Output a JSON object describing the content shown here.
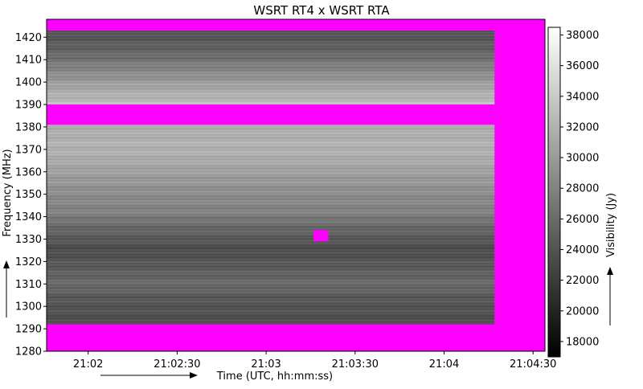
{
  "chart_data": {
    "type": "heatmap",
    "title": "WSRT RT4 x WSRT RTA",
    "xlabel": "Time (UTC, hh:mm:ss)",
    "ylabel": "Frequency (MHz)",
    "colorbar_label": "Visibility (Jy)",
    "x_tick_labels": [
      "21:02",
      "21:02:30",
      "21:03",
      "21:03:30",
      "21:04",
      "21:04:30"
    ],
    "x_tick_seconds": [
      120,
      150,
      180,
      210,
      240,
      270
    ],
    "xlim_seconds": [
      106,
      274
    ],
    "y_ticks": [
      1280,
      1290,
      1300,
      1310,
      1320,
      1330,
      1340,
      1350,
      1360,
      1370,
      1380,
      1390,
      1400,
      1410,
      1420
    ],
    "ylim": [
      1280,
      1428
    ],
    "colorbar_ticks": [
      18000,
      20000,
      22000,
      24000,
      26000,
      28000,
      30000,
      32000,
      34000,
      36000,
      38000
    ],
    "colorbar_range": [
      17000,
      38500
    ],
    "colormap": "gray",
    "flag_color": "#ff00ff",
    "flagged_regions": [
      {
        "time_range": [
          106,
          274
        ],
        "freq_range": [
          1280,
          1292
        ]
      },
      {
        "time_range": [
          106,
          274
        ],
        "freq_range": [
          1423,
          1428
        ]
      },
      {
        "time_range": [
          257,
          274
        ],
        "freq_range": [
          1280,
          1428
        ]
      },
      {
        "time_range": [
          106,
          274
        ],
        "freq_range": [
          1381,
          1390
        ]
      },
      {
        "time_range": [
          196,
          201
        ],
        "freq_range": [
          1329,
          1334
        ]
      }
    ],
    "spectrum_profile": [
      {
        "freq": 1292,
        "value": 23500
      },
      {
        "freq": 1298,
        "value": 24000
      },
      {
        "freq": 1304,
        "value": 24500
      },
      {
        "freq": 1310,
        "value": 26000
      },
      {
        "freq": 1316,
        "value": 25000
      },
      {
        "freq": 1322,
        "value": 24000
      },
      {
        "freq": 1326,
        "value": 23500
      },
      {
        "freq": 1330,
        "value": 24500
      },
      {
        "freq": 1336,
        "value": 26000
      },
      {
        "freq": 1342,
        "value": 28000
      },
      {
        "freq": 1348,
        "value": 28500
      },
      {
        "freq": 1354,
        "value": 29500
      },
      {
        "freq": 1360,
        "value": 30500
      },
      {
        "freq": 1366,
        "value": 31500
      },
      {
        "freq": 1372,
        "value": 32000
      },
      {
        "freq": 1378,
        "value": 31500
      },
      {
        "freq": 1384,
        "value": 32500
      },
      {
        "freq": 1390,
        "value": 33000
      },
      {
        "freq": 1396,
        "value": 31500
      },
      {
        "freq": 1402,
        "value": 29500
      },
      {
        "freq": 1408,
        "value": 27500
      },
      {
        "freq": 1414,
        "value": 25500
      },
      {
        "freq": 1420,
        "value": 24500
      },
      {
        "freq": 1423,
        "value": 24000
      }
    ]
  }
}
